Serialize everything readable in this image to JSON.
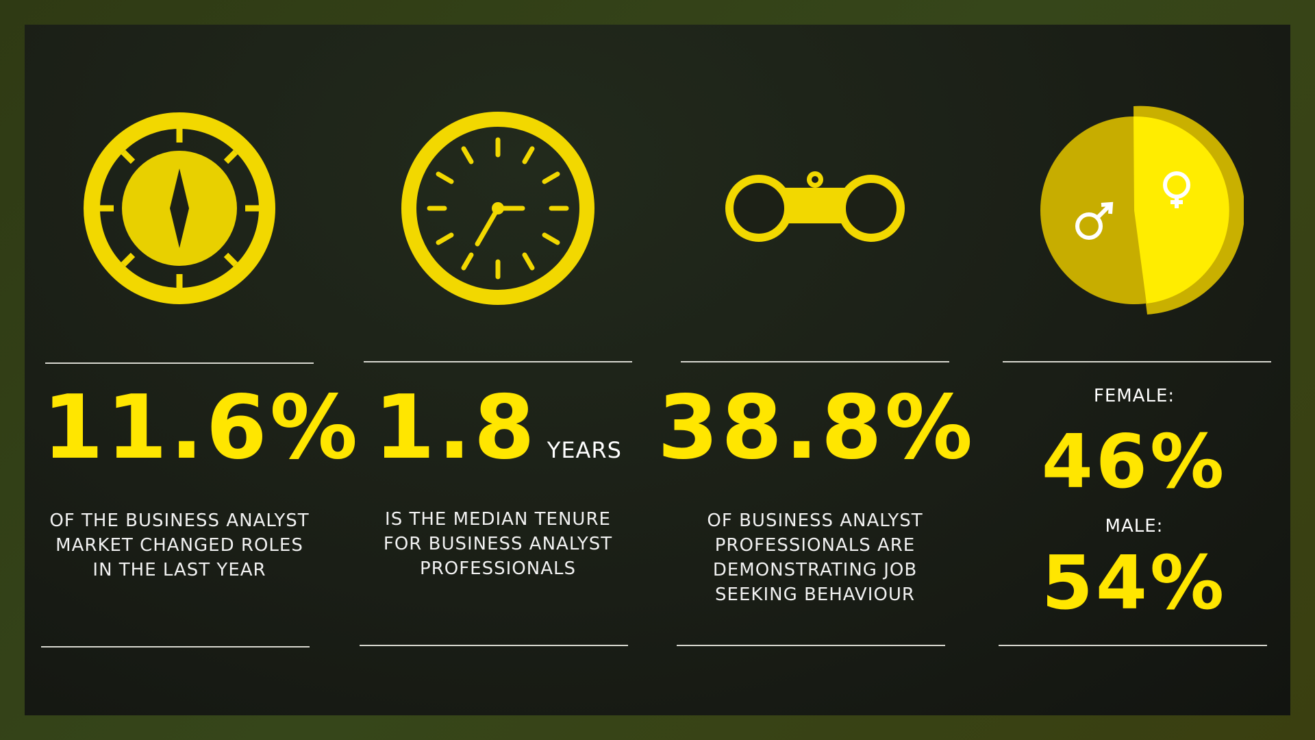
{
  "colors": {
    "accent": "#ffe600",
    "accent_dark": "#c9b000",
    "text": "#f2f2f2"
  },
  "stats": [
    {
      "icon": "compass-icon",
      "value": "11.6%",
      "description": "OF THE BUSINESS ANALYST\nMARKET CHANGED ROLES\nIN THE LAST YEAR"
    },
    {
      "icon": "clock-icon",
      "value": "1.8",
      "unit": "YEARS",
      "description": "IS THE MEDIAN TENURE\nFOR BUSINESS ANALYST\nPROFESSIONALS"
    },
    {
      "icon": "binoculars-icon",
      "value": "38.8%",
      "description": "OF BUSINESS ANALYST\nPROFESSIONALS ARE\nDEMONSTRATING JOB\nSEEKING BEHAVIOUR"
    },
    {
      "icon": "gender-pie-icon",
      "female_label": "FEMALE:",
      "female_value": "46%",
      "male_label": "MALE:",
      "male_value": "54%",
      "female_share": 46,
      "male_share": 54
    }
  ]
}
